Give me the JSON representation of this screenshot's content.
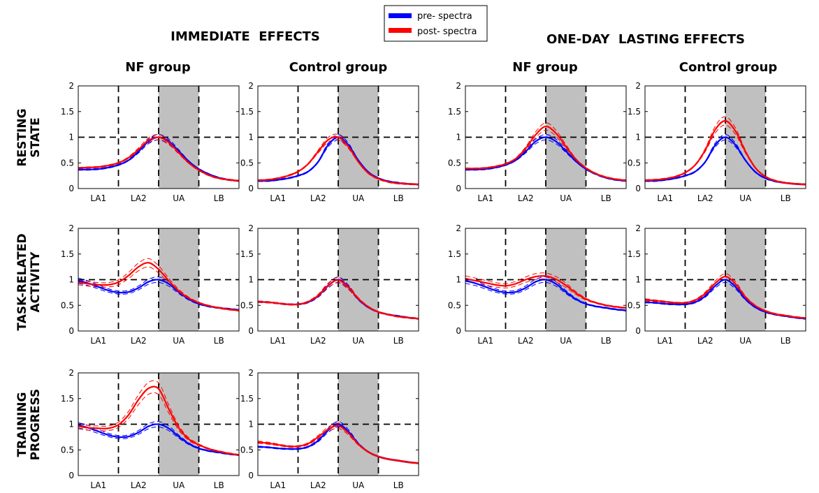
{
  "legend": {
    "items": [
      {
        "label": "pre- spectra",
        "color": "#0000ff"
      },
      {
        "label": "post- spectra",
        "color": "#ff0000"
      }
    ]
  },
  "titles": {
    "immediate": "IMMEDIATE  EFFECTS",
    "lasting": "ONE-DAY  LASTING EFFECTS",
    "col_nf_1": "NF group",
    "col_ctrl_1": "Control group",
    "col_nf_2": "NF group",
    "col_ctrl_2": "Control group",
    "row_1_line1": "RESTING",
    "row_1_line2": "STATE",
    "row_2_line1": "TASK-RELATED",
    "row_2_line2": "ACTIVITY",
    "row_3_line1": "TRAINING",
    "row_3_line2": "PROGRESS"
  },
  "chart_data": {
    "type": "line",
    "x_tick_labels": [
      "LA1",
      "LA2",
      "UA",
      "LB"
    ],
    "x_band_boundaries": [
      1,
      2,
      3
    ],
    "shaded_band": "UA",
    "ylim": [
      0,
      2
    ],
    "y_ticks": [
      0,
      0.5,
      1,
      1.5,
      2
    ],
    "y_tick_labels": [
      "0",
      "0.5",
      "1",
      "1.5",
      "2"
    ],
    "reference_line_y": 1,
    "x": [
      0,
      0.25,
      0.5,
      0.75,
      1,
      1.25,
      1.5,
      1.75,
      2,
      2.25,
      2.5,
      2.75,
      3,
      3.25,
      3.5,
      3.75,
      4
    ],
    "panels": [
      {
        "id": "rest-nf-imm",
        "row": 0,
        "col": 0,
        "pre": [
          0.37,
          0.37,
          0.38,
          0.41,
          0.46,
          0.55,
          0.72,
          0.92,
          1.0,
          0.92,
          0.73,
          0.53,
          0.38,
          0.28,
          0.21,
          0.17,
          0.15
        ],
        "post": [
          0.4,
          0.41,
          0.42,
          0.45,
          0.5,
          0.6,
          0.76,
          0.94,
          1.0,
          0.9,
          0.7,
          0.5,
          0.36,
          0.26,
          0.2,
          0.17,
          0.15
        ]
      },
      {
        "id": "rest-ctrl-imm",
        "row": 0,
        "col": 1,
        "pre": [
          0.15,
          0.15,
          0.17,
          0.2,
          0.25,
          0.33,
          0.52,
          0.85,
          1.0,
          0.85,
          0.55,
          0.32,
          0.2,
          0.14,
          0.11,
          0.09,
          0.08
        ],
        "post": [
          0.16,
          0.17,
          0.2,
          0.25,
          0.33,
          0.48,
          0.72,
          0.95,
          1.0,
          0.82,
          0.52,
          0.3,
          0.19,
          0.13,
          0.1,
          0.09,
          0.08
        ]
      },
      {
        "id": "rest-nf-last",
        "row": 0,
        "col": 2,
        "pre": [
          0.37,
          0.37,
          0.38,
          0.41,
          0.46,
          0.55,
          0.72,
          0.92,
          1.0,
          0.92,
          0.73,
          0.53,
          0.38,
          0.28,
          0.21,
          0.17,
          0.15
        ],
        "post": [
          0.39,
          0.39,
          0.4,
          0.43,
          0.48,
          0.58,
          0.78,
          1.05,
          1.21,
          1.08,
          0.82,
          0.57,
          0.4,
          0.29,
          0.22,
          0.18,
          0.16
        ]
      },
      {
        "id": "rest-ctrl-last",
        "row": 0,
        "col": 3,
        "pre": [
          0.15,
          0.15,
          0.17,
          0.2,
          0.25,
          0.33,
          0.52,
          0.85,
          1.0,
          0.85,
          0.55,
          0.32,
          0.2,
          0.14,
          0.11,
          0.09,
          0.08
        ],
        "post": [
          0.16,
          0.17,
          0.19,
          0.23,
          0.31,
          0.46,
          0.75,
          1.15,
          1.32,
          1.12,
          0.72,
          0.4,
          0.23,
          0.15,
          0.11,
          0.09,
          0.08
        ]
      },
      {
        "id": "task-nf-imm",
        "row": 1,
        "col": 0,
        "pre": [
          0.98,
          0.93,
          0.86,
          0.79,
          0.75,
          0.76,
          0.84,
          0.96,
          1.0,
          0.92,
          0.76,
          0.62,
          0.53,
          0.48,
          0.45,
          0.43,
          0.41
        ],
        "post": [
          0.95,
          0.92,
          0.9,
          0.9,
          0.95,
          1.08,
          1.25,
          1.33,
          1.2,
          0.98,
          0.78,
          0.64,
          0.55,
          0.49,
          0.45,
          0.42,
          0.4
        ]
      },
      {
        "id": "task-ctrl-imm",
        "row": 1,
        "col": 1,
        "pre": [
          0.57,
          0.56,
          0.54,
          0.52,
          0.52,
          0.56,
          0.68,
          0.88,
          1.0,
          0.86,
          0.62,
          0.46,
          0.37,
          0.32,
          0.29,
          0.26,
          0.24
        ],
        "post": [
          0.57,
          0.56,
          0.54,
          0.52,
          0.52,
          0.57,
          0.69,
          0.89,
          0.99,
          0.85,
          0.63,
          0.47,
          0.37,
          0.32,
          0.28,
          0.26,
          0.24
        ]
      },
      {
        "id": "task-nf-last",
        "row": 1,
        "col": 2,
        "pre": [
          0.98,
          0.93,
          0.86,
          0.79,
          0.75,
          0.76,
          0.84,
          0.96,
          1.0,
          0.92,
          0.76,
          0.62,
          0.53,
          0.48,
          0.45,
          0.42,
          0.4
        ],
        "post": [
          1.02,
          0.98,
          0.94,
          0.9,
          0.88,
          0.92,
          1.0,
          1.06,
          1.07,
          1.01,
          0.89,
          0.74,
          0.62,
          0.55,
          0.5,
          0.47,
          0.45
        ]
      },
      {
        "id": "task-ctrl-last",
        "row": 1,
        "col": 3,
        "pre": [
          0.56,
          0.55,
          0.53,
          0.52,
          0.52,
          0.56,
          0.68,
          0.88,
          1.0,
          0.86,
          0.62,
          0.46,
          0.37,
          0.32,
          0.29,
          0.26,
          0.24
        ],
        "post": [
          0.61,
          0.59,
          0.57,
          0.55,
          0.55,
          0.6,
          0.73,
          0.93,
          1.06,
          0.92,
          0.66,
          0.49,
          0.39,
          0.33,
          0.3,
          0.27,
          0.25
        ]
      },
      {
        "id": "train-nf-imm",
        "row": 2,
        "col": 0,
        "pre": [
          0.98,
          0.93,
          0.86,
          0.79,
          0.75,
          0.76,
          0.84,
          0.96,
          1.0,
          0.92,
          0.76,
          0.62,
          0.53,
          0.48,
          0.45,
          0.42,
          0.4
        ],
        "post": [
          0.96,
          0.93,
          0.92,
          0.92,
          0.99,
          1.18,
          1.48,
          1.7,
          1.69,
          1.3,
          0.93,
          0.71,
          0.6,
          0.52,
          0.47,
          0.43,
          0.4
        ]
      },
      {
        "id": "train-ctrl-imm",
        "row": 2,
        "col": 1,
        "pre": [
          0.56,
          0.55,
          0.53,
          0.52,
          0.52,
          0.56,
          0.68,
          0.88,
          1.0,
          0.86,
          0.62,
          0.46,
          0.37,
          0.32,
          0.29,
          0.26,
          0.24
        ],
        "post": [
          0.65,
          0.63,
          0.6,
          0.57,
          0.57,
          0.62,
          0.75,
          0.9,
          0.97,
          0.83,
          0.61,
          0.46,
          0.37,
          0.32,
          0.29,
          0.26,
          0.24
        ]
      }
    ]
  }
}
